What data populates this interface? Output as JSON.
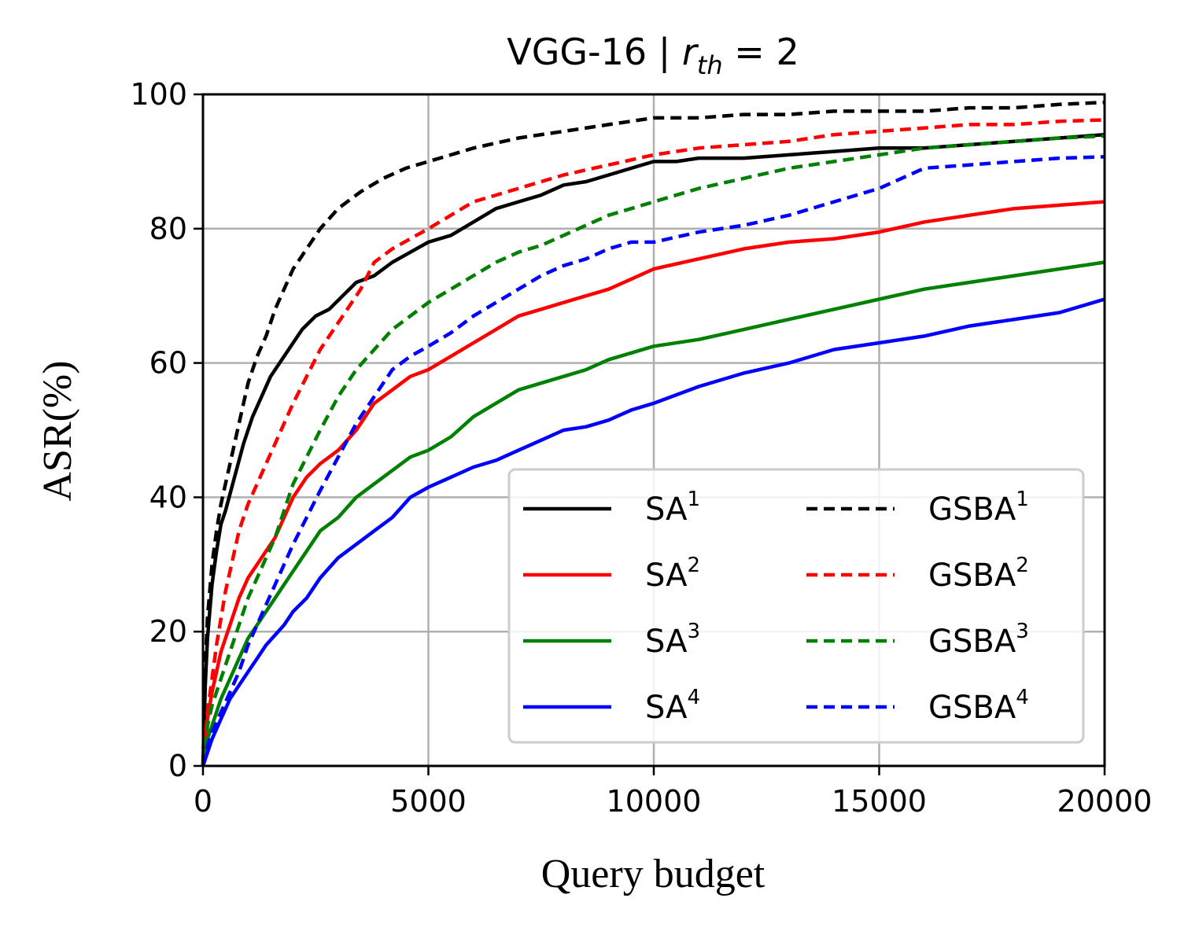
{
  "chart_data": {
    "type": "line",
    "title_main": "VGG-16  |  ",
    "title_var": "r",
    "title_sub": "th",
    "title_rhs": " = 2",
    "xlabel": "Query budget",
    "ylabel": "ASR(%)",
    "xlim": [
      0,
      20000
    ],
    "ylim": [
      0,
      100
    ],
    "xticks": [
      0,
      5000,
      10000,
      15000,
      20000
    ],
    "yticks": [
      0,
      20,
      40,
      60,
      80,
      100
    ],
    "grid": true,
    "legend_position": "lower-right",
    "legend_columns": 2,
    "series": [
      {
        "name": "SA",
        "sup": "1",
        "color": "#000000",
        "style": "solid",
        "x": [
          0,
          50,
          100,
          200,
          300,
          400,
          500,
          700,
          900,
          1100,
          1300,
          1500,
          1700,
          2000,
          2200,
          2500,
          2800,
          3100,
          3400,
          3800,
          4200,
          4600,
          5000,
          5500,
          6000,
          6500,
          7000,
          7500,
          8000,
          8500,
          9000,
          9500,
          10000,
          10500,
          11000,
          12000,
          13000,
          14000,
          15000,
          16000,
          17000,
          18000,
          19000,
          20000
        ],
        "y": [
          0,
          12,
          19,
          27,
          32,
          36,
          38,
          43,
          48,
          52,
          55,
          58,
          60,
          63,
          65,
          67,
          68,
          70,
          72,
          73,
          75,
          76.5,
          78,
          79,
          81,
          83,
          84,
          85,
          86.5,
          87,
          88,
          89,
          90,
          90,
          90.5,
          90.5,
          91,
          91.5,
          92,
          92,
          92.5,
          93,
          93.5,
          94
        ]
      },
      {
        "name": "SA",
        "sup": "2",
        "color": "#ff0000",
        "style": "solid",
        "x": [
          0,
          100,
          200,
          300,
          400,
          500,
          600,
          700,
          800,
          1000,
          1200,
          1400,
          1600,
          1800,
          2000,
          2300,
          2600,
          3000,
          3400,
          3800,
          4200,
          4600,
          5000,
          5500,
          6000,
          6500,
          7000,
          7500,
          8000,
          8500,
          9000,
          9500,
          10000,
          11000,
          12000,
          13000,
          14000,
          15000,
          16000,
          17000,
          18000,
          19000,
          20000
        ],
        "y": [
          0,
          7,
          11,
          14,
          17,
          19,
          21,
          23,
          25,
          28,
          30,
          32,
          34,
          37,
          40,
          43,
          45,
          47,
          50,
          54,
          56,
          58,
          59,
          61,
          63,
          65,
          67,
          68,
          69,
          70,
          71,
          72.5,
          74,
          75.5,
          77,
          78,
          78.5,
          79.5,
          81,
          82,
          83,
          83.5,
          84
        ]
      },
      {
        "name": "SA",
        "sup": "3",
        "color": "#008000",
        "style": "solid",
        "x": [
          0,
          100,
          200,
          400,
          600,
          800,
          1000,
          1200,
          1400,
          1600,
          1800,
          2000,
          2300,
          2600,
          3000,
          3400,
          3800,
          4200,
          4600,
          5000,
          5500,
          6000,
          6500,
          7000,
          7500,
          8000,
          8500,
          9000,
          9500,
          10000,
          11000,
          12000,
          13000,
          14000,
          15000,
          16000,
          17000,
          18000,
          19000,
          20000
        ],
        "y": [
          0,
          4,
          6,
          10,
          13,
          16,
          19,
          21,
          23,
          25,
          27,
          29,
          32,
          35,
          37,
          40,
          42,
          44,
          46,
          47,
          49,
          52,
          54,
          56,
          57,
          58,
          59,
          60.5,
          61.5,
          62.5,
          63.5,
          65,
          66.5,
          68,
          69.5,
          71,
          72,
          73,
          74,
          75
        ]
      },
      {
        "name": "SA",
        "sup": "4",
        "color": "#0000ff",
        "style": "solid",
        "x": [
          0,
          100,
          200,
          400,
          600,
          800,
          1000,
          1200,
          1400,
          1600,
          1800,
          2000,
          2300,
          2600,
          3000,
          3400,
          3800,
          4200,
          4600,
          5000,
          5500,
          6000,
          6500,
          7000,
          7500,
          8000,
          8500,
          9000,
          9500,
          10000,
          11000,
          12000,
          13000,
          14000,
          15000,
          16000,
          17000,
          18000,
          19000,
          20000
        ],
        "y": [
          0,
          2,
          4,
          7,
          10,
          12,
          14,
          16,
          18,
          19.5,
          21,
          23,
          25,
          28,
          31,
          33,
          35,
          37,
          40,
          41.5,
          43,
          44.5,
          45.5,
          47,
          48.5,
          50,
          50.5,
          51.5,
          53,
          54,
          56.5,
          58.5,
          60,
          62,
          63,
          64,
          65.5,
          66.5,
          67.5,
          69.5
        ]
      },
      {
        "name": "GSBA",
        "sup": "1",
        "color": "#000000",
        "style": "dashed",
        "x": [
          0,
          50,
          100,
          200,
          300,
          400,
          500,
          600,
          700,
          800,
          900,
          1000,
          1200,
          1400,
          1600,
          1800,
          2000,
          2300,
          2600,
          3000,
          3500,
          4000,
          4500,
          5000,
          5500,
          6000,
          7000,
          8000,
          9000,
          10000,
          11000,
          12000,
          13000,
          14000,
          15000,
          16000,
          17000,
          18000,
          19000,
          20000
        ],
        "y": [
          0,
          15,
          22,
          30,
          35,
          39,
          42,
          45,
          48,
          51,
          54,
          57,
          61,
          64,
          68,
          71,
          74,
          77,
          80,
          83,
          85.5,
          87.5,
          89,
          90,
          91,
          92,
          93.5,
          94.5,
          95.5,
          96.5,
          96.5,
          97,
          97,
          97.5,
          97.5,
          97.5,
          98,
          98,
          98.5,
          98.8
        ]
      },
      {
        "name": "GSBA",
        "sup": "2",
        "color": "#ff0000",
        "style": "dashed",
        "x": [
          0,
          100,
          200,
          300,
          400,
          500,
          600,
          700,
          800,
          1000,
          1200,
          1400,
          1600,
          1800,
          2000,
          2300,
          2600,
          2900,
          3200,
          3500,
          3800,
          4200,
          4600,
          5000,
          5500,
          6000,
          6500,
          7000,
          7500,
          8000,
          9000,
          10000,
          11000,
          12000,
          13000,
          14000,
          15000,
          16000,
          17000,
          18000,
          19000,
          20000
        ],
        "y": [
          0,
          8,
          13,
          18,
          22,
          26,
          29,
          32,
          35,
          39,
          42,
          45,
          48,
          51,
          54,
          58,
          62,
          65,
          68,
          71,
          75,
          77,
          78.5,
          80,
          82,
          84,
          85,
          86,
          87,
          88,
          89.5,
          91,
          92,
          92.5,
          93,
          94,
          94.5,
          95,
          95.5,
          95.5,
          96,
          96.2
        ]
      },
      {
        "name": "GSBA",
        "sup": "3",
        "color": "#008000",
        "style": "dashed",
        "x": [
          0,
          100,
          200,
          400,
          600,
          800,
          1000,
          1200,
          1400,
          1600,
          1800,
          2000,
          2300,
          2600,
          3000,
          3400,
          3800,
          4200,
          4600,
          5000,
          5500,
          6000,
          6500,
          7000,
          7500,
          8000,
          8500,
          9000,
          9500,
          10000,
          11000,
          12000,
          13000,
          14000,
          15000,
          16000,
          17000,
          18000,
          19000,
          20000
        ],
        "y": [
          0,
          6,
          9,
          13,
          17,
          21,
          25,
          28,
          31,
          34,
          38,
          42,
          46,
          50,
          55,
          59,
          62,
          65,
          67,
          69,
          71,
          73,
          75,
          76.5,
          77.5,
          79,
          80.5,
          82,
          83,
          84,
          86,
          87.5,
          89,
          90,
          91,
          92,
          92.5,
          93,
          93.5,
          93.8
        ]
      },
      {
        "name": "GSBA",
        "sup": "4",
        "color": "#0000ff",
        "style": "dashed",
        "x": [
          0,
          100,
          200,
          400,
          600,
          800,
          1000,
          1200,
          1400,
          1600,
          1800,
          2000,
          2300,
          2600,
          3000,
          3400,
          3800,
          4200,
          4600,
          5000,
          5500,
          6000,
          6500,
          7000,
          7500,
          8000,
          8500,
          9000,
          9500,
          10000,
          11000,
          12000,
          13000,
          14000,
          15000,
          16000,
          17000,
          18000,
          19000,
          20000
        ],
        "y": [
          0,
          3,
          5,
          8,
          11,
          14,
          18,
          21,
          24,
          27,
          30,
          33,
          37,
          41,
          46,
          51,
          55,
          59,
          61,
          62.5,
          64.5,
          67,
          69,
          71,
          73,
          74.5,
          75.5,
          77,
          78,
          78,
          79.5,
          80.5,
          82,
          84,
          86,
          89,
          89.5,
          90,
          90.5,
          90.7
        ]
      }
    ]
  }
}
